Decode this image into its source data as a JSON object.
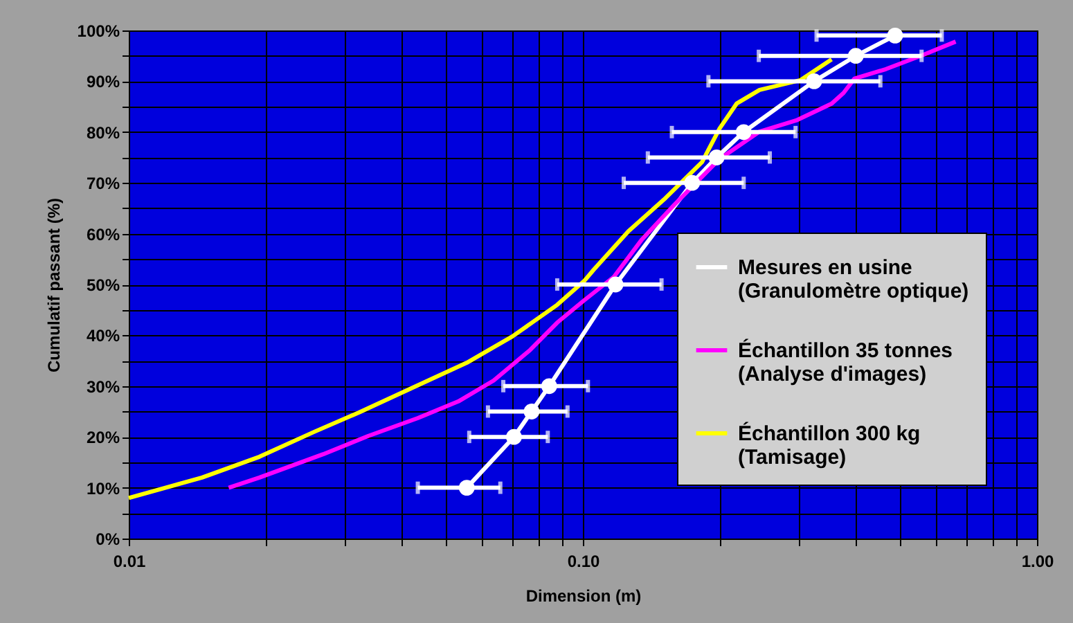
{
  "chart_data": {
    "type": "line",
    "xlabel": "Dimension (m)",
    "ylabel": "Cumulatif passant (%)",
    "log": "x",
    "xlim": [
      0.01,
      1
    ],
    "ylim": [
      0,
      100
    ],
    "xticks": [
      {
        "value": 0.01,
        "label": "0.01"
      },
      {
        "value": 0.02,
        "label": null
      },
      {
        "value": 0.03,
        "label": null
      },
      {
        "value": 0.04,
        "label": null
      },
      {
        "value": 0.05,
        "label": null
      },
      {
        "value": 0.06,
        "label": null
      },
      {
        "value": 0.07,
        "label": null
      },
      {
        "value": 0.08,
        "label": null
      },
      {
        "value": 0.09,
        "label": null
      },
      {
        "value": 0.1,
        "label": "0.10"
      },
      {
        "value": 0.2,
        "label": null
      },
      {
        "value": 0.3,
        "label": null
      },
      {
        "value": 0.4,
        "label": null
      },
      {
        "value": 0.5,
        "label": null
      },
      {
        "value": 0.6,
        "label": null
      },
      {
        "value": 0.7,
        "label": null
      },
      {
        "value": 0.8,
        "label": null
      },
      {
        "value": 0.9,
        "label": null
      },
      {
        "value": 1,
        "label": "1.00"
      }
    ],
    "yticks": [
      {
        "value": 0,
        "label": "0%"
      },
      {
        "value": 5,
        "label": null
      },
      {
        "value": 10,
        "label": "10%"
      },
      {
        "value": 15,
        "label": null
      },
      {
        "value": 20,
        "label": "20%"
      },
      {
        "value": 25,
        "label": null
      },
      {
        "value": 30,
        "label": "30%"
      },
      {
        "value": 35,
        "label": null
      },
      {
        "value": 40,
        "label": "40%"
      },
      {
        "value": 45,
        "label": null
      },
      {
        "value": 50,
        "label": "50%"
      },
      {
        "value": 55,
        "label": null
      },
      {
        "value": 60,
        "label": "60%"
      },
      {
        "value": 65,
        "label": null
      },
      {
        "value": 70,
        "label": "70%"
      },
      {
        "value": 75,
        "label": null
      },
      {
        "value": 80,
        "label": "80%"
      },
      {
        "value": 85,
        "label": null
      },
      {
        "value": 90,
        "label": "90%"
      },
      {
        "value": 95,
        "label": null
      },
      {
        "value": 100,
        "label": "100%"
      }
    ],
    "grid": true,
    "legend": "right",
    "series": [
      {
        "name": "Mesures en usine (Granulomètre optique)",
        "color": "#ffffff",
        "marker": "circle",
        "x": [
          0.0555,
          0.0705,
          0.0771,
          0.0843,
          0.118,
          0.174,
          0.197,
          0.226,
          0.323,
          0.399,
          0.487
        ],
        "values": [
          10,
          20,
          25,
          30,
          50,
          70,
          75,
          80,
          90,
          95,
          99
        ],
        "xerrors": [
          [
            0.0433,
            0.0658
          ],
          [
            0.0562,
            0.0837
          ],
          [
            0.0618,
            0.0925
          ],
          [
            0.0668,
            0.1026
          ],
          [
            0.0878,
            0.149
          ],
          [
            0.123,
            0.226
          ],
          [
            0.139,
            0.258
          ],
          [
            0.157,
            0.294
          ],
          [
            0.189,
            0.452
          ],
          [
            0.244,
            0.557
          ],
          [
            0.327,
            0.617
          ]
        ]
      },
      {
        "name": "Échantillon 35 tonnes (Analyse d'images)",
        "color": "#ff00ff",
        "marker": "none",
        "x": [
          0.0166,
          0.0194,
          0.0268,
          0.0337,
          0.0433,
          0.0532,
          0.0636,
          0.0765,
          0.0878,
          0.1007,
          0.117,
          0.135,
          0.159,
          0.2,
          0.245,
          0.295,
          0.353,
          0.375,
          0.396,
          0.465,
          0.558,
          0.662
        ],
        "values": [
          10,
          12,
          16.6,
          20.2,
          23.7,
          27,
          31.1,
          37.1,
          42.5,
          46.9,
          51.5,
          58.9,
          65.7,
          74.7,
          80.1,
          82.3,
          85.6,
          87.7,
          90.5,
          92.4,
          95.1,
          97.8
        ]
      },
      {
        "name": "Échantillon 300 kg (Tamisage)",
        "color": "#ffff00",
        "marker": "none",
        "x": [
          0.01,
          0.0145,
          0.0194,
          0.0256,
          0.0321,
          0.0422,
          0.0555,
          0.07,
          0.0878,
          0.1007,
          0.1056,
          0.126,
          0.152,
          0.183,
          0.2,
          0.218,
          0.245,
          0.301,
          0.353
        ],
        "values": [
          8,
          12,
          16.1,
          21,
          24.8,
          29.7,
          34.6,
          39.8,
          46,
          50.7,
          52.9,
          60.5,
          67,
          74.1,
          80.7,
          85.6,
          88.3,
          90.2,
          94.3
        ]
      }
    ]
  }
}
